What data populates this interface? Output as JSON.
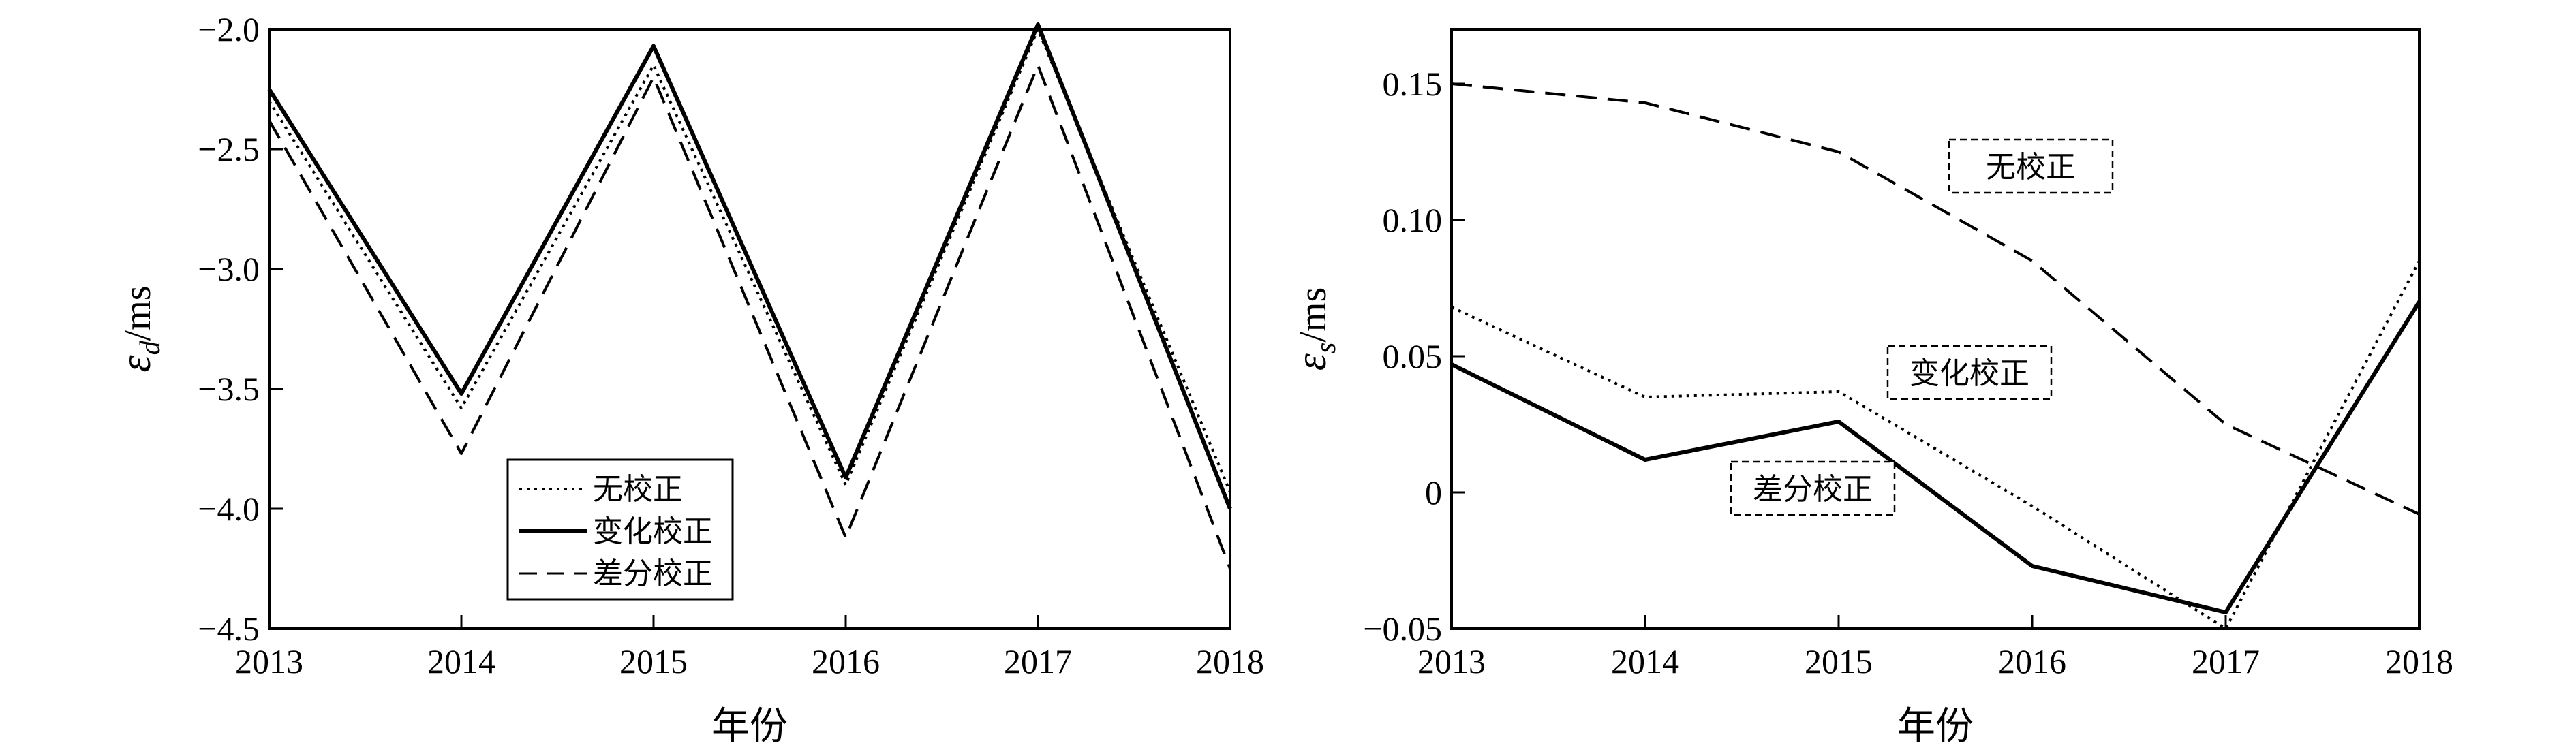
{
  "chart_data": [
    {
      "type": "line",
      "title": "",
      "xlabel": "年份",
      "ylabel_symbol": "ε",
      "ylabel_subscript": "d",
      "ylabel_unit": "/ms",
      "x": [
        2013,
        2014,
        2015,
        2016,
        2017,
        2018
      ],
      "xlim": [
        2013,
        2018
      ],
      "ylim": [
        -4.5,
        -2.0
      ],
      "xticks": [
        "2013",
        "2014",
        "2015",
        "2016",
        "2017",
        "2018"
      ],
      "yticks": [
        "−2.0",
        "−2.5",
        "−3.0",
        "−3.5",
        "−4.0",
        "−4.5"
      ],
      "ytick_values": [
        -2.0,
        -2.5,
        -3.0,
        -3.5,
        -4.0,
        -4.5
      ],
      "grid": false,
      "legend_position": "bottom-center",
      "series": [
        {
          "name": "无校正",
          "style": "dotted",
          "values": [
            -2.3,
            -3.58,
            -2.15,
            -3.9,
            -2.0,
            -3.93
          ]
        },
        {
          "name": "变化校正",
          "style": "solid",
          "values": [
            -2.25,
            -3.52,
            -2.07,
            -3.87,
            -1.98,
            -4.0
          ]
        },
        {
          "name": "差分校正",
          "style": "dashed",
          "values": [
            -2.38,
            -3.77,
            -2.2,
            -4.12,
            -2.15,
            -4.25
          ]
        }
      ]
    },
    {
      "type": "line",
      "title": "",
      "xlabel": "年份",
      "ylabel_symbol": "ε",
      "ylabel_subscript": "s",
      "ylabel_unit": "/ms",
      "x": [
        2013,
        2014,
        2015,
        2016,
        2017,
        2018
      ],
      "xlim": [
        2013,
        2018
      ],
      "ylim": [
        -0.05,
        0.17
      ],
      "xticks": [
        "2013",
        "2014",
        "2015",
        "2016",
        "2017",
        "2018"
      ],
      "yticks": [
        "0.15",
        "0.10",
        "0.05",
        "0",
        "−0.05"
      ],
      "ytick_values": [
        0.15,
        0.1,
        0.05,
        0,
        -0.05
      ],
      "grid": false,
      "annotations": [
        {
          "text": "无校正",
          "series": "dashed"
        },
        {
          "text": "变化校正",
          "series": "dotted"
        },
        {
          "text": "差分校正",
          "series": "solid"
        }
      ],
      "series": [
        {
          "style": "dashed",
          "values": [
            0.15,
            0.143,
            0.125,
            0.085,
            0.025,
            -0.008
          ]
        },
        {
          "style": "dotted",
          "values": [
            0.068,
            0.035,
            0.037,
            -0.005,
            -0.05,
            0.085
          ]
        },
        {
          "style": "solid",
          "values": [
            0.047,
            0.012,
            0.026,
            -0.027,
            -0.044,
            0.07
          ]
        }
      ]
    }
  ]
}
